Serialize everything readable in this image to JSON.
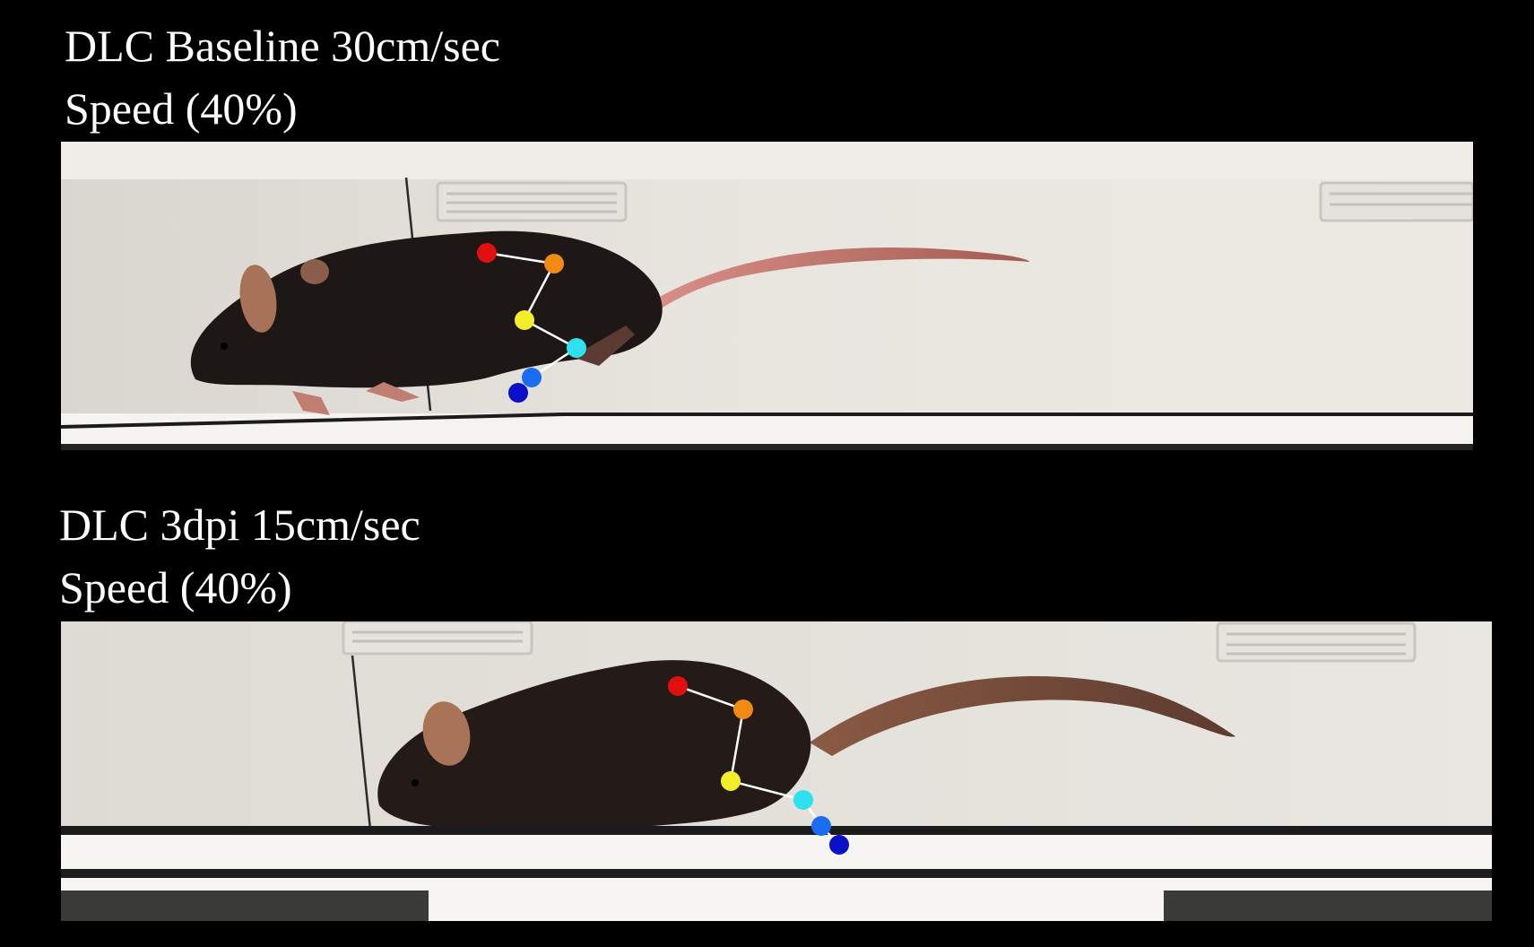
{
  "panels": [
    {
      "title_line1": "DLC Baseline 30cm/sec",
      "title_line2": "Speed (40%)"
    },
    {
      "title_line1": "DLC 3dpi 15cm/sec",
      "title_line2": "Speed (40%)"
    }
  ],
  "colors": {
    "background": "#000000",
    "text": "#ffffff",
    "skeleton_line": "#ffffff",
    "marker_1": "#e01010",
    "marker_2": "#f08a10",
    "marker_3": "#f2ee2a",
    "marker_4": "#2fe0ee",
    "marker_5": "#1a6cf0",
    "marker_6": "#0a10c8"
  },
  "markers": [
    "red",
    "orange",
    "yellow",
    "cyan",
    "blue",
    "dark-blue"
  ]
}
